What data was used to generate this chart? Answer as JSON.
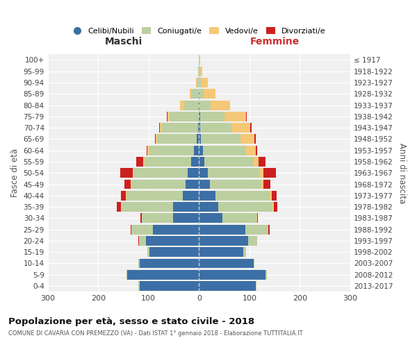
{
  "age_groups": [
    "0-4",
    "5-9",
    "10-14",
    "15-19",
    "20-24",
    "25-29",
    "30-34",
    "35-39",
    "40-44",
    "45-49",
    "50-54",
    "55-59",
    "60-64",
    "65-69",
    "70-74",
    "75-79",
    "80-84",
    "85-89",
    "90-94",
    "95-99",
    "100+"
  ],
  "birth_years": [
    "2013-2017",
    "2008-2012",
    "2003-2007",
    "1998-2002",
    "1993-1997",
    "1988-1992",
    "1983-1987",
    "1978-1982",
    "1973-1977",
    "1968-1972",
    "1963-1967",
    "1958-1962",
    "1953-1957",
    "1948-1952",
    "1943-1947",
    "1938-1942",
    "1933-1937",
    "1928-1932",
    "1923-1927",
    "1918-1922",
    "≤ 1917"
  ],
  "male": {
    "celibi": [
      118,
      142,
      118,
      98,
      105,
      92,
      52,
      52,
      32,
      26,
      22,
      16,
      10,
      4,
      2,
      1,
      1,
      1,
      0,
      0,
      0
    ],
    "coniugati": [
      2,
      2,
      2,
      4,
      14,
      42,
      62,
      102,
      112,
      108,
      108,
      92,
      88,
      78,
      72,
      58,
      28,
      14,
      4,
      2,
      1
    ],
    "vedovi": [
      0,
      0,
      0,
      0,
      0,
      0,
      0,
      1,
      1,
      2,
      2,
      3,
      4,
      4,
      4,
      4,
      8,
      4,
      2,
      0,
      0
    ],
    "divorziati": [
      0,
      0,
      0,
      0,
      1,
      2,
      2,
      8,
      10,
      12,
      24,
      14,
      2,
      1,
      1,
      1,
      1,
      0,
      0,
      0,
      0
    ]
  },
  "female": {
    "nubili": [
      112,
      132,
      108,
      88,
      98,
      92,
      46,
      38,
      32,
      22,
      18,
      10,
      8,
      4,
      2,
      2,
      1,
      1,
      0,
      0,
      0
    ],
    "coniugate": [
      2,
      2,
      2,
      6,
      18,
      46,
      68,
      108,
      108,
      102,
      102,
      98,
      86,
      78,
      62,
      48,
      22,
      8,
      4,
      2,
      1
    ],
    "vedove": [
      0,
      0,
      0,
      0,
      0,
      0,
      1,
      2,
      4,
      4,
      8,
      10,
      18,
      28,
      38,
      44,
      38,
      24,
      14,
      4,
      1
    ],
    "divorziate": [
      0,
      0,
      0,
      0,
      0,
      2,
      2,
      8,
      10,
      14,
      24,
      14,
      4,
      2,
      2,
      1,
      1,
      0,
      0,
      0,
      0
    ]
  },
  "colors": {
    "celibi_nubili": "#3c6fa5",
    "coniugati": "#bccfa0",
    "vedovi": "#f5c878",
    "divorziati": "#cc2020"
  },
  "title": "Popolazione per età, sesso e stato civile - 2018",
  "subtitle": "COMUNE DI CAVARIA CON PREMEZZO (VA) - Dati ISTAT 1° gennaio 2018 - Elaborazione TUTTITALIA.IT",
  "xlabel_left": "Maschi",
  "xlabel_right": "Femmine",
  "ylabel": "Fasce di età",
  "ylabel_right": "Anni di nascita",
  "xlim": 300,
  "legend_labels": [
    "Celibi/Nubili",
    "Coniugati/e",
    "Vedovi/e",
    "Divorziati/e"
  ],
  "background_color": "#ffffff",
  "plot_bg_color": "#f0f0f0"
}
